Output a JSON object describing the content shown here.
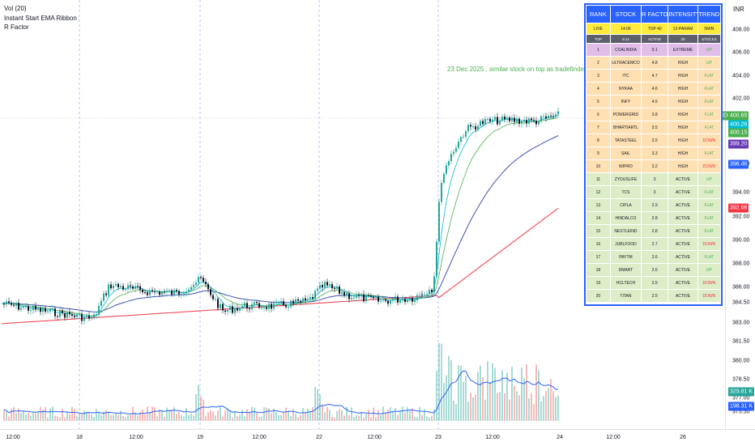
{
  "legend": {
    "vol": "Vol (20)",
    "ema": "Instant Start EMA Ribbon",
    "rfactor": "R Factor"
  },
  "annotation": "23 Dec 2025 , similar stock on top as tradefinder",
  "currency": "INR",
  "y_axis": {
    "labels": [
      "408.00",
      "406.00",
      "404.00",
      "402.00",
      "396.00",
      "394.00",
      "392.00",
      "390.00",
      "388.00",
      "386.00",
      "384.50",
      "383.00",
      "381.50",
      "380.00",
      "378.50",
      "377.00",
      "375.50"
    ],
    "price_tags": [
      {
        "text": "COALINDIA",
        "value": "400.65",
        "color": "#4caf50"
      },
      {
        "text": "",
        "value": "400.28",
        "color": "#00bcd4"
      },
      {
        "text": "",
        "value": "400.15",
        "color": "#4caf50"
      },
      {
        "text": "",
        "value": "399.20",
        "color": "#673ab7"
      },
      {
        "text": "",
        "value": "396.46",
        "color": "#2962ff"
      },
      {
        "text": "",
        "value": "392.66",
        "color": "#f23645"
      },
      {
        "text": "",
        "value": "329.81 K",
        "color": "#26a69a"
      },
      {
        "text": "",
        "value": "198.31 K",
        "color": "#2962ff"
      }
    ]
  },
  "x_axis": {
    "labels": [
      "12:00",
      "18",
      "12:00",
      "19",
      "12:00",
      "22",
      "12:00",
      "23",
      "12:00",
      "24",
      "12:00",
      "26"
    ]
  },
  "ranking": {
    "header": [
      "RANK",
      "STOCK",
      "R FACTOR",
      "INTENSITY",
      "TREND"
    ],
    "live_row": [
      "LIVE",
      "14:06",
      "TOP 40",
      "12-PARAM",
      "5MIN"
    ],
    "sub_row": [
      "TOP",
      "9.1x",
      "ACTIVE",
      "20",
      "STOCKS"
    ],
    "rows": [
      {
        "rank": "1",
        "stock": "COALINDIA",
        "rf": "9.1",
        "intensity": "EXTREME",
        "trend": "UP",
        "tier": "t1"
      },
      {
        "rank": "2",
        "stock": "ULTRACEMCO",
        "rf": "4.8",
        "intensity": "HIGH",
        "trend": "UP",
        "tier": "t2"
      },
      {
        "rank": "3",
        "stock": "ITC",
        "rf": "4.7",
        "intensity": "HIGH",
        "trend": "FLAT",
        "tier": "t2"
      },
      {
        "rank": "4",
        "stock": "NYKAA",
        "rf": "4.6",
        "intensity": "HIGH",
        "trend": "FLAT",
        "tier": "t2"
      },
      {
        "rank": "5",
        "stock": "INFY",
        "rf": "4.5",
        "intensity": "HIGH",
        "trend": "FLAT",
        "tier": "t2"
      },
      {
        "rank": "6",
        "stock": "POWERGRID",
        "rf": "3.8",
        "intensity": "HIGH",
        "trend": "FLAT",
        "tier": "t2"
      },
      {
        "rank": "7",
        "stock": "BHARTIARTL",
        "rf": "3.5",
        "intensity": "HIGH",
        "trend": "FLAT",
        "tier": "t2"
      },
      {
        "rank": "8",
        "stock": "TATASTEEL",
        "rf": "3.5",
        "intensity": "HIGH",
        "trend": "DOWN",
        "tier": "t2"
      },
      {
        "rank": "9",
        "stock": "SAIL",
        "rf": "3.3",
        "intensity": "HIGH",
        "trend": "FLAT",
        "tier": "t2"
      },
      {
        "rank": "10",
        "stock": "WIPRO",
        "rf": "3.2",
        "intensity": "HIGH",
        "trend": "DOWN",
        "tier": "t2"
      },
      {
        "rank": "11",
        "stock": "ZYDUSLIFE",
        "rf": "3",
        "intensity": "ACTIVE",
        "trend": "UP",
        "tier": "t3"
      },
      {
        "rank": "12",
        "stock": "TCS",
        "rf": "3",
        "intensity": "ACTIVE",
        "trend": "FLAT",
        "tier": "t3"
      },
      {
        "rank": "13",
        "stock": "CIPLA",
        "rf": "2.9",
        "intensity": "ACTIVE",
        "trend": "FLAT",
        "tier": "t3"
      },
      {
        "rank": "14",
        "stock": "HINDALCO",
        "rf": "2.8",
        "intensity": "ACTIVE",
        "trend": "FLAT",
        "tier": "t3"
      },
      {
        "rank": "15",
        "stock": "NESTLEIND",
        "rf": "2.8",
        "intensity": "ACTIVE",
        "trend": "FLAT",
        "tier": "t3"
      },
      {
        "rank": "16",
        "stock": "JUBLFOOD",
        "rf": "2.7",
        "intensity": "ACTIVE",
        "trend": "DOWN",
        "tier": "t3"
      },
      {
        "rank": "17",
        "stock": "PAYTM",
        "rf": "2.6",
        "intensity": "ACTIVE",
        "trend": "FLAT",
        "tier": "t3"
      },
      {
        "rank": "18",
        "stock": "DMART",
        "rf": "2.6",
        "intensity": "ACTIVE",
        "trend": "UP",
        "tier": "t3"
      },
      {
        "rank": "19",
        "stock": "HCLTECH",
        "rf": "2.5",
        "intensity": "ACTIVE",
        "trend": "DOWN",
        "tier": "t3"
      },
      {
        "rank": "20",
        "stock": "TITAN",
        "rf": "2.5",
        "intensity": "ACTIVE",
        "trend": "DOWN",
        "tier": "t3"
      }
    ]
  },
  "colors": {
    "up_candle": "#26a69a",
    "down_candle": "#131722",
    "ema_fast": "#00bcd4",
    "ema_mid": "#4caf50",
    "ema_slow": "#3f51b5",
    "ema_long": "#f23645",
    "session_line": "#2962ff",
    "vol_up": "#26a69a",
    "vol_down": "#ef5350",
    "vol_ma": "#2962ff"
  }
}
